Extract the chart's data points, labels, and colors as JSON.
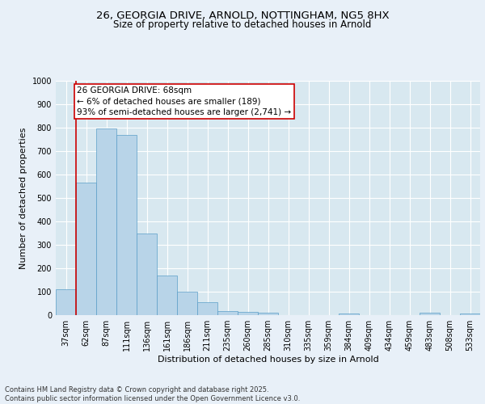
{
  "title_line1": "26, GEORGIA DRIVE, ARNOLD, NOTTINGHAM, NG5 8HX",
  "title_line2": "Size of property relative to detached houses in Arnold",
  "xlabel": "Distribution of detached houses by size in Arnold",
  "ylabel": "Number of detached properties",
  "categories": [
    "37sqm",
    "62sqm",
    "87sqm",
    "111sqm",
    "136sqm",
    "161sqm",
    "186sqm",
    "211sqm",
    "235sqm",
    "260sqm",
    "285sqm",
    "310sqm",
    "335sqm",
    "359sqm",
    "384sqm",
    "409sqm",
    "434sqm",
    "459sqm",
    "483sqm",
    "508sqm",
    "533sqm"
  ],
  "values": [
    110,
    565,
    795,
    770,
    350,
    170,
    100,
    55,
    18,
    13,
    10,
    0,
    0,
    0,
    8,
    0,
    0,
    0,
    10,
    0,
    8
  ],
  "bar_color": "#b8d4e8",
  "bar_edge_color": "#5a9ec8",
  "highlight_bar_index": 1,
  "highlight_color": "#cc0000",
  "ylim": [
    0,
    1000
  ],
  "yticks": [
    0,
    100,
    200,
    300,
    400,
    500,
    600,
    700,
    800,
    900,
    1000
  ],
  "annotation_text": "26 GEORGIA DRIVE: 68sqm\n← 6% of detached houses are smaller (189)\n93% of semi-detached houses are larger (2,741) →",
  "annotation_box_color": "#ffffff",
  "annotation_box_edge": "#cc0000",
  "plot_bg_color": "#d8e8f0",
  "fig_bg_color": "#e8f0f8",
  "grid_color": "#ffffff",
  "footer_text": "Contains HM Land Registry data © Crown copyright and database right 2025.\nContains public sector information licensed under the Open Government Licence v3.0.",
  "title_fontsize": 9.5,
  "subtitle_fontsize": 8.5,
  "axis_label_fontsize": 8,
  "tick_fontsize": 7,
  "annotation_fontsize": 7.5
}
